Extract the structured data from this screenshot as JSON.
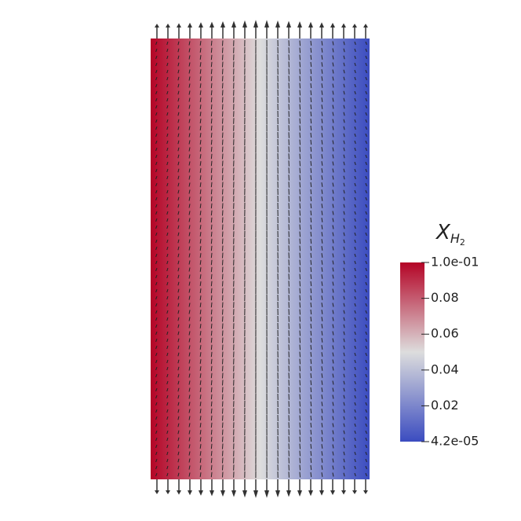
{
  "chart_data": {
    "type": "field",
    "colorbar": {
      "symbol": "X",
      "subscript": "H",
      "subsubscript": "2",
      "clim": [
        4.2e-05,
        0.1
      ],
      "ticks": [
        {
          "value": 0.1,
          "label": "1.0e-01"
        },
        0.08,
        0.06,
        0.04,
        0.02,
        {
          "value": 4.2e-05,
          "label": "4.2e-05"
        }
      ],
      "colormap": [
        "#3b4cc0",
        "#dddddd",
        "#b40426"
      ]
    }
  }
}
